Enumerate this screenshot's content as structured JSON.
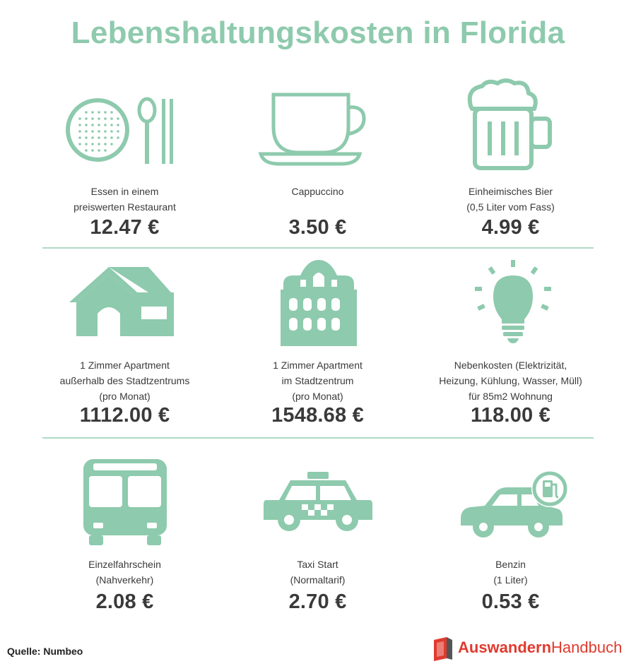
{
  "title": "Lebenshaltungskosten in Florida",
  "accent": "#8ecaad",
  "items": [
    {
      "icon": "restaurant-icon",
      "label": [
        "Essen in einem",
        "preiswerten Restaurant"
      ],
      "price": "12.47 €"
    },
    {
      "icon": "coffee-cup-icon",
      "label": [
        "Cappuccino"
      ],
      "price": "3.50 €"
    },
    {
      "icon": "beer-mug-icon",
      "label": [
        "Einheimisches Bier",
        "(0,5 Liter vom Fass)"
      ],
      "price": "4.99 €"
    },
    {
      "icon": "house-icon",
      "label": [
        "1 Zimmer Apartment",
        "außerhalb des Stadtzentrums",
        "(pro Monat)"
      ],
      "price": "1112.00 €"
    },
    {
      "icon": "apartment-building-icon",
      "label": [
        "1 Zimmer Apartment",
        "im Stadtzentrum",
        "(pro Monat)"
      ],
      "price": "1548.68 €"
    },
    {
      "icon": "light-bulb-icon",
      "label": [
        "Nebenkosten (Elektrizität,",
        "Heizung, Kühlung, Wasser, Müll)",
        "für 85m2 Wohnung"
      ],
      "price": "118.00 €"
    },
    {
      "icon": "bus-icon",
      "label": [
        "Einzelfahrschein",
        "(Nahverkehr)"
      ],
      "price": "2.08 €"
    },
    {
      "icon": "taxi-icon",
      "label": [
        "Taxi Start",
        "(Normaltarif)"
      ],
      "price": "2.70 €"
    },
    {
      "icon": "car-fuel-icon",
      "label": [
        "Benzin",
        "(1 Liter)"
      ],
      "price": "0.53 €"
    }
  ],
  "source": "Quelle: Numbeo",
  "brand": {
    "part1": "Auswandern",
    "part2": "Handbuch"
  }
}
